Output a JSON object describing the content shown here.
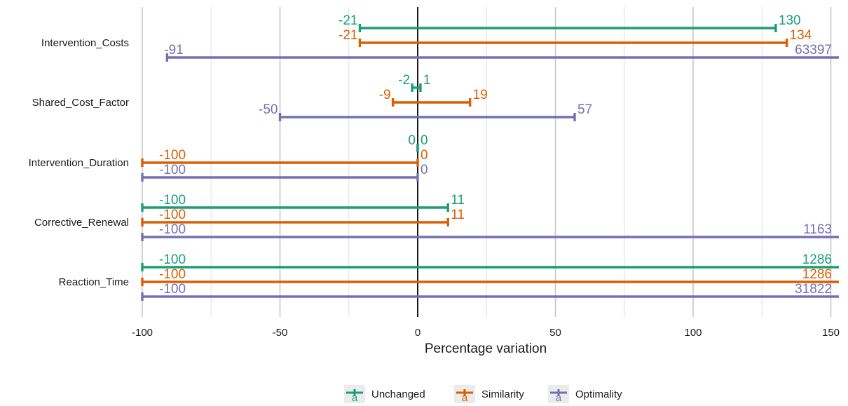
{
  "chart_data": {
    "type": "range_bar",
    "title": "",
    "xlabel": "Percentage variation",
    "ylabel": "",
    "xlim": [
      -100,
      152
    ],
    "x_ticks": [
      -100,
      -50,
      0,
      50,
      100,
      150
    ],
    "x_tick_labels": [
      "-100",
      "-50",
      "0",
      "50",
      "100",
      "150"
    ],
    "grid": true,
    "legend_position": "bottom",
    "categories": [
      "Intervention_Costs",
      "Shared_Cost_Factor",
      "Intervention_Duration",
      "Corrective_Renewal",
      "Reaction_Time"
    ],
    "series": [
      {
        "name": "Unchanged",
        "color": "#1b9e77",
        "ranges": [
          {
            "category": "Intervention_Costs",
            "low": -21,
            "high": 130,
            "low_label": "-21",
            "high_label": "130"
          },
          {
            "category": "Shared_Cost_Factor",
            "low": -2,
            "high": 1,
            "low_label": "-2",
            "high_label": "1"
          },
          {
            "category": "Intervention_Duration",
            "low": 0,
            "high": 0,
            "low_label": "0",
            "high_label": "0"
          },
          {
            "category": "Corrective_Renewal",
            "low": -100,
            "high": 11,
            "low_label": "-100",
            "high_label": "11"
          },
          {
            "category": "Reaction_Time",
            "low": -100,
            "high": 1286,
            "low_label": "-100",
            "high_label": "1286"
          }
        ]
      },
      {
        "name": "Similarity",
        "color": "#d95f02",
        "ranges": [
          {
            "category": "Intervention_Costs",
            "low": -21,
            "high": 134,
            "low_label": "-21",
            "high_label": "134"
          },
          {
            "category": "Shared_Cost_Factor",
            "low": -9,
            "high": 19,
            "low_label": "-9",
            "high_label": "19"
          },
          {
            "category": "Intervention_Duration",
            "low": -100,
            "high": 0,
            "low_label": "-100",
            "high_label": "0"
          },
          {
            "category": "Corrective_Renewal",
            "low": -100,
            "high": 11,
            "low_label": "-100",
            "high_label": "11"
          },
          {
            "category": "Reaction_Time",
            "low": -100,
            "high": 1286,
            "low_label": "-100",
            "high_label": "1286"
          }
        ]
      },
      {
        "name": "Optimality",
        "color": "#7570b3",
        "ranges": [
          {
            "category": "Intervention_Costs",
            "low": -91,
            "high": 63397,
            "low_label": "-91",
            "high_label": "63397"
          },
          {
            "category": "Shared_Cost_Factor",
            "low": -50,
            "high": 57,
            "low_label": "-50",
            "high_label": "57"
          },
          {
            "category": "Intervention_Duration",
            "low": -100,
            "high": 0,
            "low_label": "-100",
            "high_label": "0"
          },
          {
            "category": "Corrective_Renewal",
            "low": -100,
            "high": 1163,
            "low_label": "-100",
            "high_label": "1163"
          },
          {
            "category": "Reaction_Time",
            "low": -100,
            "high": 31822,
            "low_label": "-100",
            "high_label": "31822"
          }
        ]
      }
    ]
  }
}
